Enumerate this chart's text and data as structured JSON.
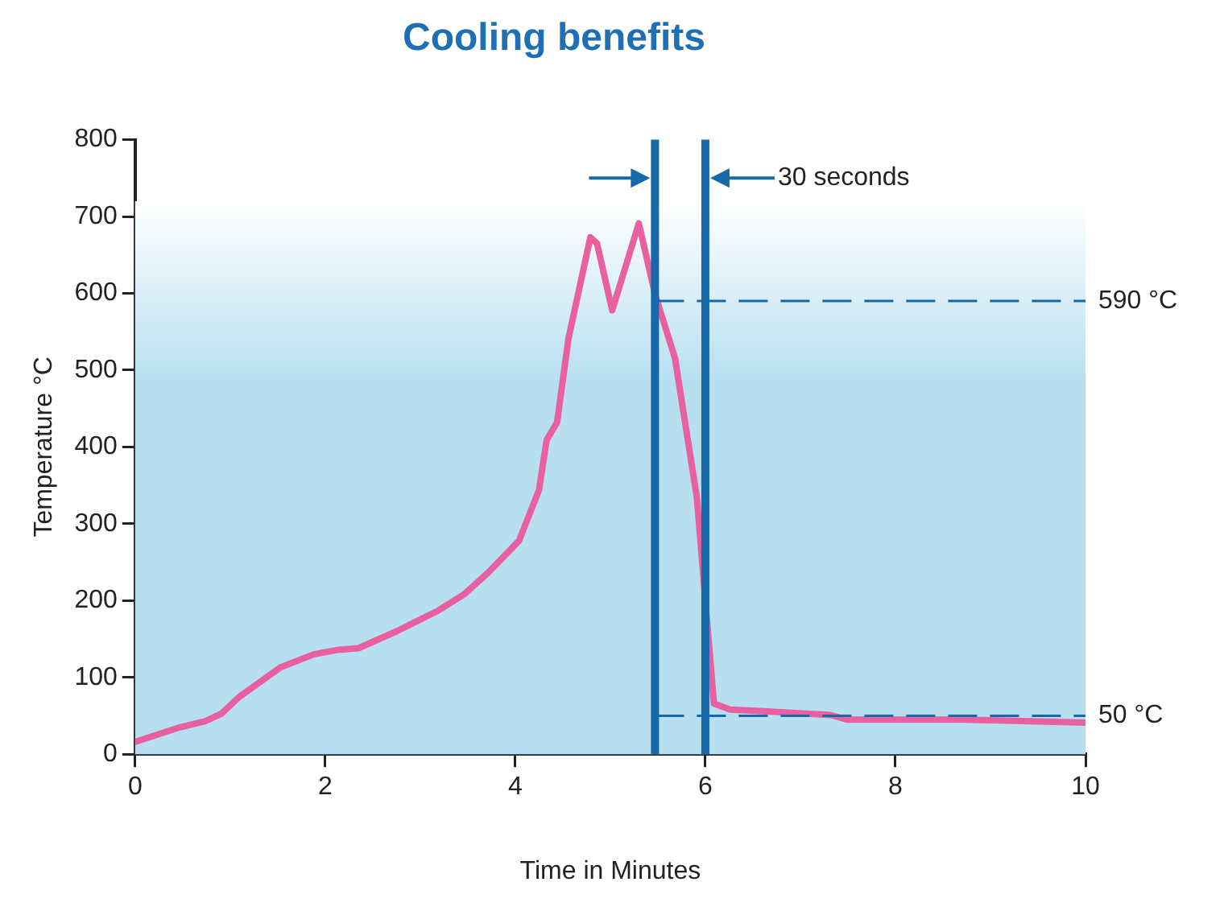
{
  "chart_data": {
    "type": "line",
    "title": "Cooling benefits",
    "xlabel": "Time in Minutes",
    "ylabel": "Temperature °C",
    "xlim": [
      0,
      10
    ],
    "xticks": [
      0,
      2,
      4,
      6,
      8,
      10
    ],
    "ylim": [
      0,
      800
    ],
    "yticks": [
      0,
      100,
      200,
      300,
      400,
      500,
      600,
      700,
      800
    ],
    "grid": false,
    "legend": false,
    "marker": "none",
    "line_style": "solid",
    "series": [
      {
        "color": "#e8609f",
        "x": [
          0,
          0.47,
          0.74,
          0.91,
          1.09,
          1.53,
          1.88,
          2.14,
          2.35,
          2.75,
          3.19,
          3.46,
          3.72,
          4.04,
          4.25,
          4.33,
          4.44,
          4.56,
          4.79,
          4.86,
          5.02,
          5.3,
          5.47,
          5.68,
          5.91,
          6.09,
          6.26,
          6.61,
          7.32,
          7.49,
          8.72,
          9.42,
          10
        ],
        "values": [
          16,
          35,
          43,
          53,
          74,
          113,
          130,
          136,
          138,
          160,
          187,
          208,
          237,
          278,
          344,
          409,
          432,
          541,
          673,
          665,
          578,
          691,
          599,
          516,
          335,
          66,
          58,
          56,
          51,
          45,
          45,
          43,
          41
        ]
      }
    ],
    "ref_lines": [
      {
        "axis": "x",
        "value": 5.47,
        "color": "#1668a8",
        "line_style": "solid"
      },
      {
        "axis": "x",
        "value": 6,
        "color": "#1668a8",
        "line_style": "solid"
      },
      {
        "axis": "y",
        "value": 590,
        "label": "590 °C",
        "color": "#1668a8",
        "line_style": "dashed"
      },
      {
        "axis": "y",
        "value": 50,
        "label": "50 °C",
        "color": "#1668a8",
        "line_style": "dashed"
      }
    ],
    "bands": [
      {
        "axis": "y",
        "from": 0,
        "to": 720,
        "color": "#b7dff0"
      }
    ],
    "annotations": [
      {
        "text": "30 seconds",
        "x": 6,
        "y": 750
      }
    ]
  }
}
